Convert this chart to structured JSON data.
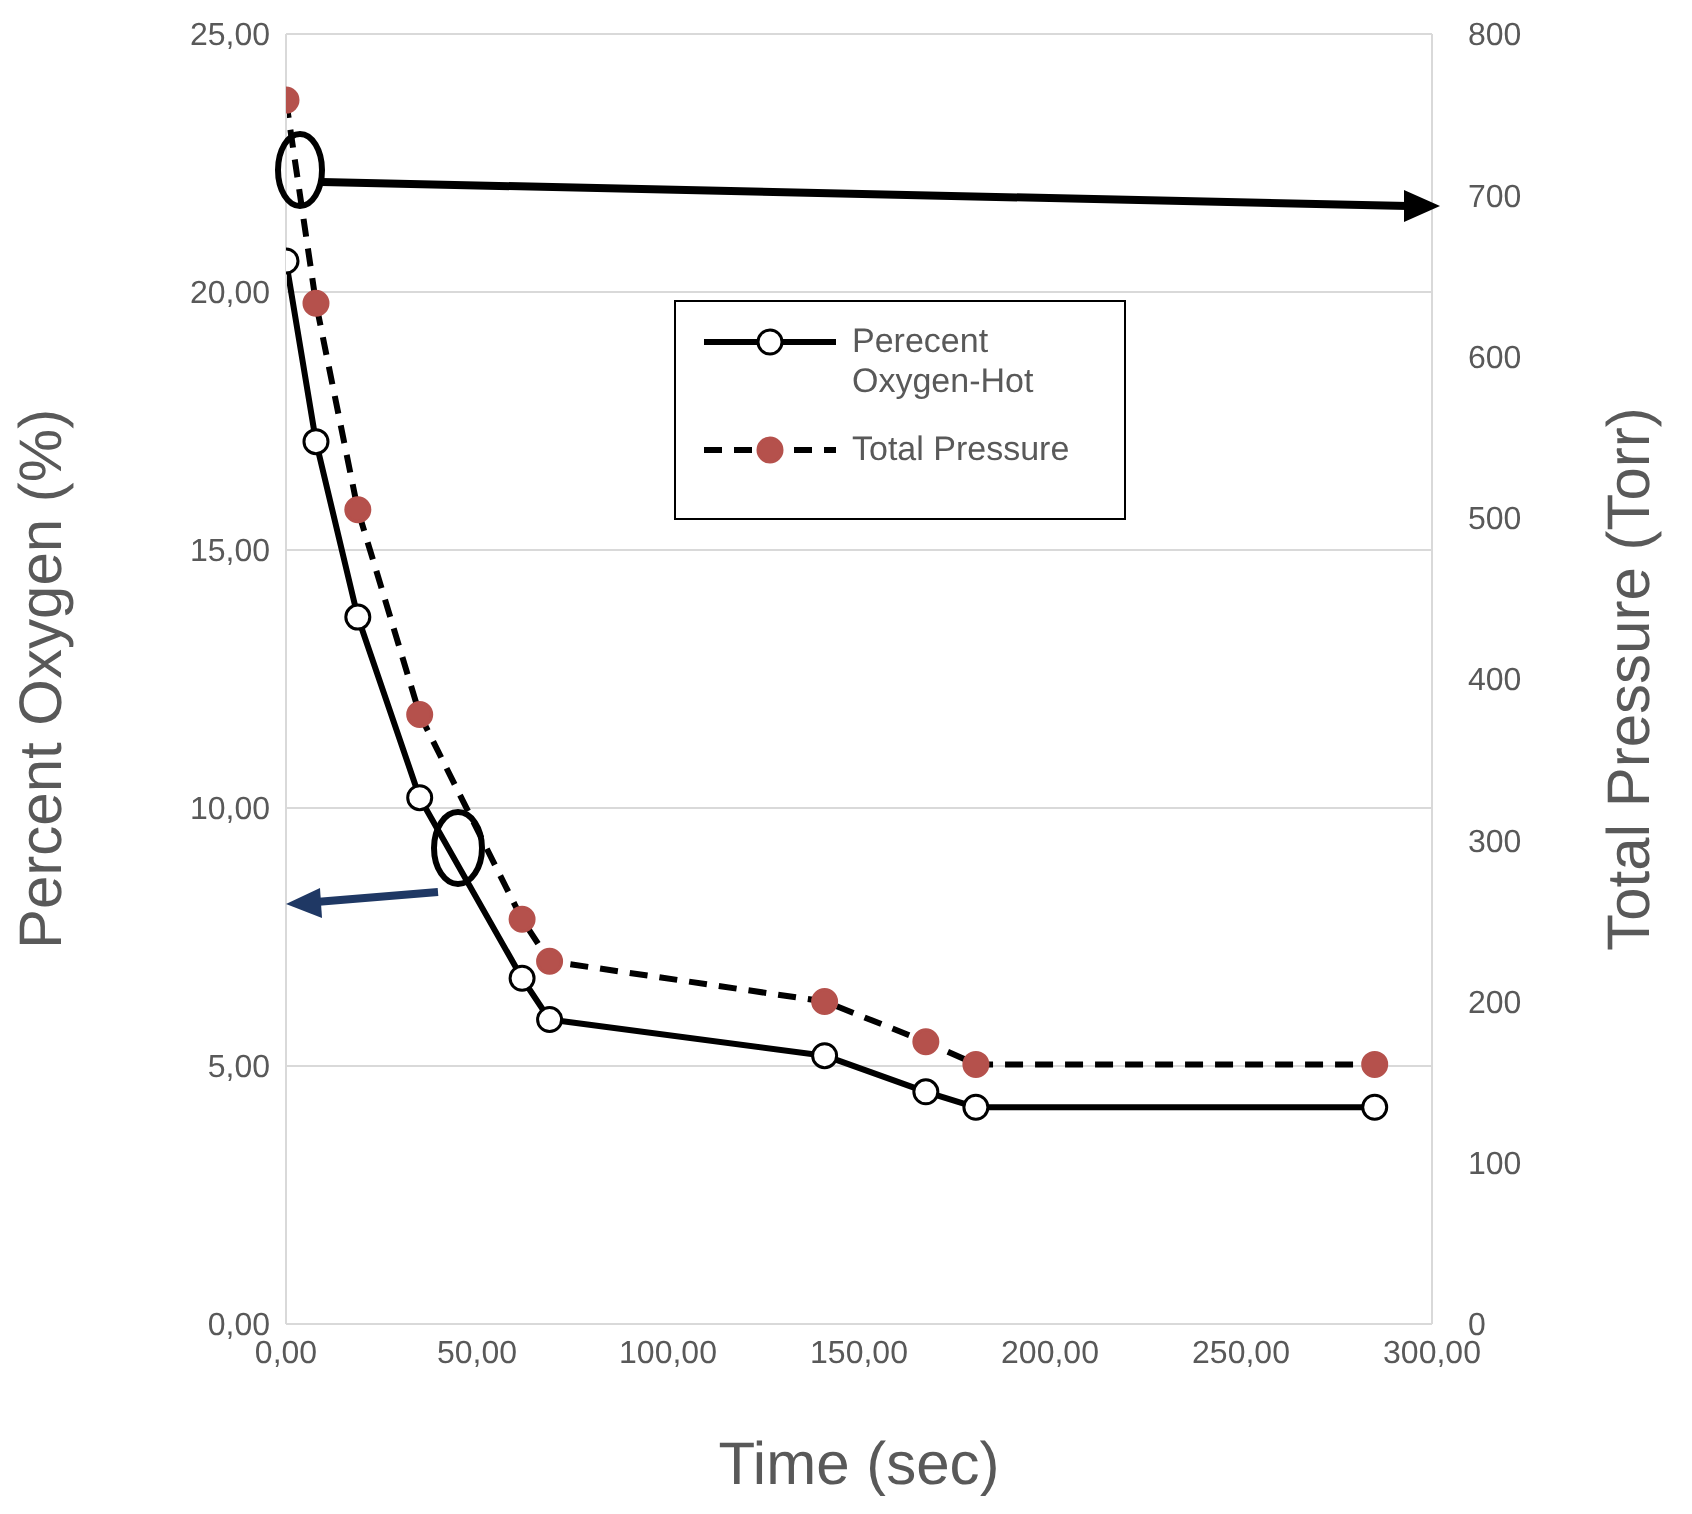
{
  "chart_data": {
    "type": "line",
    "xlabel": "Time (sec)",
    "ylabel": "Percent Oxygen (%)",
    "y2label": "Total Pressure (Torr)",
    "x": [
      0,
      7.85,
      18.8,
      35,
      61.8,
      69,
      141,
      167.5,
      180.6,
      285
    ],
    "series": [
      {
        "name": "Perecent Oxygen-Hot",
        "color": "#000000",
        "line_style": "solid",
        "marker": "circle",
        "values": [
          20.6,
          17.1,
          13.7,
          10.2,
          6.7,
          5.9,
          5.2,
          4.5,
          4.2,
          4.2
        ]
      },
      {
        "name": "Total Pressure",
        "color": "#b5514c",
        "line_style": "dashed",
        "marker": "circle",
        "axis": "y2",
        "values": [
          759,
          633,
          505,
          378,
          251,
          225,
          200,
          175,
          161,
          161
        ]
      }
    ],
    "xlim": [
      0,
      300
    ],
    "xticks": [
      {
        "value": 0,
        "label": "0,00"
      },
      {
        "value": 50,
        "label": "50,00"
      },
      {
        "value": 100,
        "label": "100,00"
      },
      {
        "value": 150,
        "label": "150,00"
      },
      {
        "value": 200,
        "label": "200,00"
      },
      {
        "value": 250,
        "label": "250,00"
      },
      {
        "value": 300,
        "label": "300,00"
      }
    ],
    "ylim": [
      0,
      25
    ],
    "yticks": [
      {
        "value": 0,
        "label": "0,00"
      },
      {
        "value": 5,
        "label": "5,00"
      },
      {
        "value": 10,
        "label": "10,00"
      },
      {
        "value": 15,
        "label": "15,00"
      },
      {
        "value": 20,
        "label": "20,00"
      },
      {
        "value": 25,
        "label": "25,00"
      }
    ],
    "y2lim": [
      0,
      800
    ],
    "y2ticks": [
      0,
      100,
      200,
      300,
      400,
      500,
      600,
      700,
      800
    ],
    "grid": "y",
    "legend": "top"
  }
}
